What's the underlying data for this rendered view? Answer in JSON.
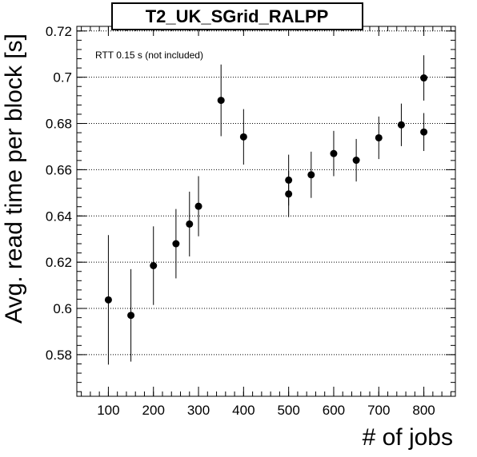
{
  "chart_data": {
    "type": "scatter",
    "title": "T2_UK_SGrid_RALPP",
    "annotation": "RTT 0.15 s (not included)",
    "xlabel": "# of jobs",
    "ylabel": "Avg. read time per block [s]",
    "xlim": [
      30,
      870
    ],
    "ylim": [
      0.562,
      0.722
    ],
    "xticks": [
      100,
      200,
      300,
      400,
      500,
      600,
      700,
      800
    ],
    "yticks": [
      0.58,
      0.6,
      0.62,
      0.64,
      0.66,
      0.68,
      0.7,
      0.72
    ],
    "ytick_labels": [
      "0.58",
      "0.6",
      "0.62",
      "0.64",
      "0.66",
      "0.68",
      "0.7",
      "0.72"
    ],
    "grid": "horizontal dotted",
    "marker_color": "#000000",
    "points": [
      {
        "x": 100,
        "y": 0.6037,
        "err": 0.028
      },
      {
        "x": 150,
        "y": 0.597,
        "err": 0.02
      },
      {
        "x": 200,
        "y": 0.6185,
        "err": 0.017
      },
      {
        "x": 250,
        "y": 0.628,
        "err": 0.015
      },
      {
        "x": 280,
        "y": 0.6365,
        "err": 0.014
      },
      {
        "x": 300,
        "y": 0.6442,
        "err": 0.013
      },
      {
        "x": 350,
        "y": 0.69,
        "err": 0.0155
      },
      {
        "x": 400,
        "y": 0.6742,
        "err": 0.012
      },
      {
        "x": 500,
        "y": 0.6555,
        "err": 0.011
      },
      {
        "x": 500,
        "y": 0.6495,
        "err": 0.01
      },
      {
        "x": 550,
        "y": 0.6578,
        "err": 0.01
      },
      {
        "x": 600,
        "y": 0.667,
        "err": 0.0098
      },
      {
        "x": 650,
        "y": 0.6641,
        "err": 0.0092
      },
      {
        "x": 700,
        "y": 0.6738,
        "err": 0.0092
      },
      {
        "x": 750,
        "y": 0.6794,
        "err": 0.0092
      },
      {
        "x": 800,
        "y": 0.6997,
        "err": 0.0098
      },
      {
        "x": 800,
        "y": 0.6763,
        "err": 0.0082
      }
    ]
  }
}
